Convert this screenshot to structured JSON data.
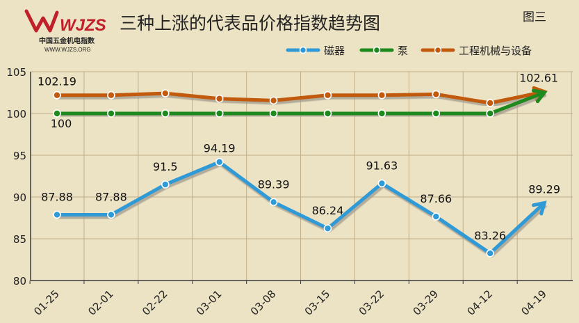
{
  "logo": {
    "mark": "WJZS",
    "cn": "中国五金机电指数",
    "url": "WWW.WJZS.ORG"
  },
  "figure_label": "图三",
  "colors": {
    "background": "#ece2c4",
    "grid": "#bfae8a",
    "axis": "#3a3a3a",
    "ci": "#2f9ad6",
    "pump": "#1e8a1e",
    "machine": "#c15a0d",
    "shadow": "#a09a8c"
  },
  "chart_data": {
    "type": "line",
    "title": "三种上涨的代表品价格指数趋势图",
    "xlabel": "",
    "ylabel": "",
    "ylim": [
      80,
      105
    ],
    "yticks": [
      80,
      85,
      90,
      95,
      100,
      105
    ],
    "grid": true,
    "legend_position": "top-right",
    "categories": [
      "01-25",
      "02-01",
      "02-22",
      "03-01",
      "03-08",
      "03-15",
      "03-22",
      "03-29",
      "04-12",
      "04-19"
    ],
    "series": [
      {
        "name": "磁器",
        "color": "#2f9ad6",
        "values": [
          87.88,
          87.88,
          91.5,
          94.19,
          89.39,
          86.24,
          91.63,
          87.66,
          83.26,
          89.29
        ],
        "labels": [
          "87.88",
          "87.88",
          "91.5",
          "94.19",
          "89.39",
          "86.24",
          "91.63",
          "87.66",
          "83.26",
          "89.29"
        ]
      },
      {
        "name": "泵",
        "color": "#1e8a1e",
        "values": [
          100,
          100,
          100,
          100,
          100,
          100,
          100,
          100,
          100,
          102.5
        ],
        "labels": [
          "100"
        ]
      },
      {
        "name": "工程机械与设备",
        "color": "#c15a0d",
        "values": [
          102.19,
          102.19,
          102.41,
          101.77,
          101.55,
          102.19,
          102.19,
          102.3,
          101.25,
          102.61
        ],
        "labels": [
          "102.19",
          "102.61"
        ]
      }
    ]
  }
}
